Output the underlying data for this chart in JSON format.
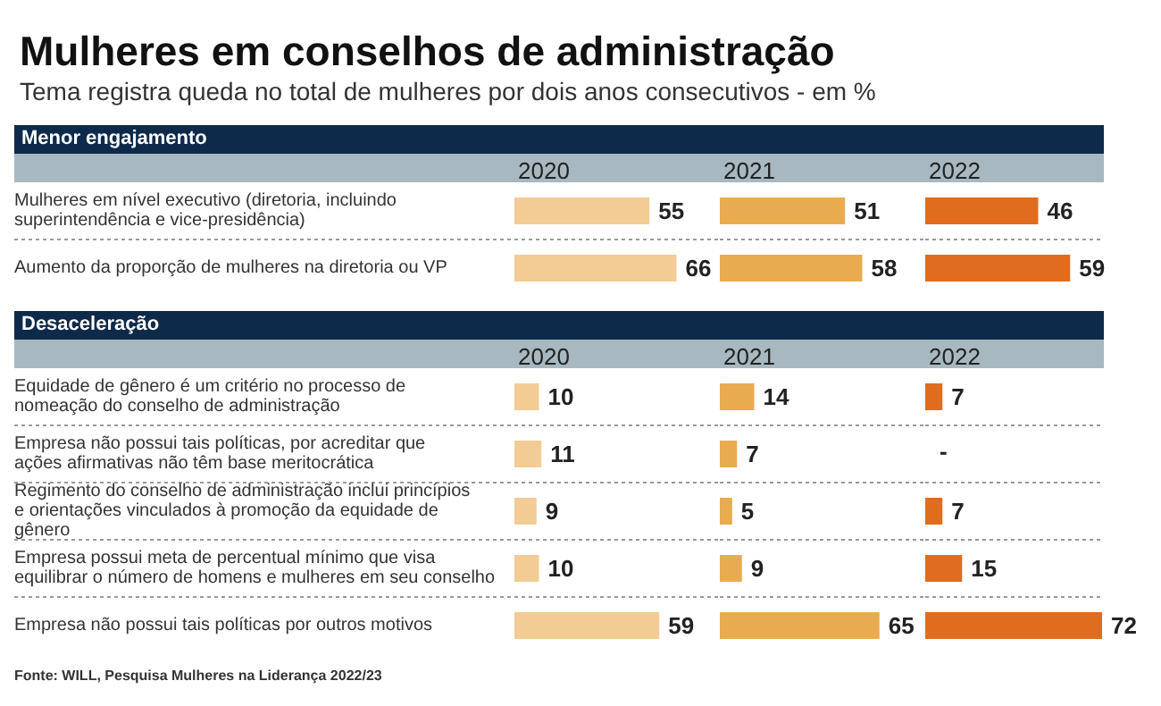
{
  "chart_data": [
    {
      "type": "bar",
      "orientation": "horizontal",
      "title": "Mulheres em conselhos de administração",
      "subtitle": "Tema registra queda no total de mulheres por dois anos consecutivos - em %",
      "annotations": [
        "Menor engajamento"
      ],
      "categories": [
        "Mulheres em nível executivo (diretoria, incluindo superintendência e vice-presidência)",
        "Aumento da proporção de mulheres na diretoria ou VP"
      ],
      "series": [
        {
          "name": "2020",
          "color": "#f2cc94",
          "values": [
            55,
            66
          ]
        }
      ],
      "data_labels": true,
      "grid": "y",
      "tick_labels": "y"
    },
    {
      "type": "bar",
      "orientation": "horizontal",
      "categories": [
        "Mulheres em nível executivo (diretoria, incluindo superintendência e vice-presidência)",
        "Aumento da proporção de mulheres na diretoria ou VP"
      ],
      "series": [
        {
          "name": "2021",
          "color": "#e9ab4f",
          "values": [
            51,
            58
          ]
        }
      ],
      "data_labels": true,
      "grid": "y",
      "tick_labels": false
    },
    {
      "type": "bar",
      "orientation": "horizontal",
      "categories": [
        "Mulheres em nível executivo (diretoria, incluindo superintendência e vice-presidência)",
        "Aumento da proporção de mulheres na diretoria ou VP"
      ],
      "series": [
        {
          "name": "2022",
          "color": "#e06c1f",
          "values": [
            46,
            59
          ]
        }
      ],
      "data_labels": true,
      "grid": "y",
      "tick_labels": false
    },
    {
      "type": "bar",
      "orientation": "horizontal",
      "annotations": [
        "Desaceleração",
        "Fonte: WILL, Pesquisa Mulheres na Liderança 2022/23"
      ],
      "categories": [
        "Equidade de gênero é um critério no processo de nomeação do conselho de administração",
        "Empresa não possui tais políticas, por acreditar que ações afirmativas não têm base meritocrática",
        "Regimento do conselho de administração inclui princípios e orientações vinculados à promoção da equidade de gênero",
        "Empresa possui meta de percentual mínimo que visa equilibrar o número de homens e mulheres em seu conselho",
        "Empresa não possui tais políticas por outros motivos"
      ],
      "series": [
        {
          "name": "2020",
          "color": "#f2cc94",
          "values": [
            10,
            11,
            9,
            10,
            59
          ]
        }
      ],
      "data_labels": true,
      "grid": "y",
      "tick_labels": "y"
    },
    {
      "type": "bar",
      "orientation": "horizontal",
      "categories": [
        "Equidade de gênero é um critério no processo de nomeação do conselho de administração",
        "Empresa não possui tais políticas, por acreditar que ações afirmativas não têm base meritocrática",
        "Regimento do conselho de administração inclui princípios e orientações vinculados à promoção da equidade de gênero",
        "Empresa possui meta de percentual mínimo que visa equilibrar o número de homens e mulheres em seu conselho",
        "Empresa não possui tais políticas por outros motivos"
      ],
      "series": [
        {
          "name": "2021",
          "color": "#e9ab4f",
          "values": [
            14,
            7,
            5,
            9,
            65
          ]
        }
      ],
      "data_labels": true,
      "grid": "y",
      "tick_labels": false
    },
    {
      "type": "bar",
      "orientation": "horizontal",
      "categories": [
        "Equidade de gênero é um critério no processo de nomeação do conselho de administração",
        "Empresa não possui tais políticas, por acreditar que ações afirmativas não têm base meritocrática",
        "Regimento do conselho de administração inclui princípios e orientações vinculados à promoção da equidade de gênero",
        "Empresa possui meta de percentual mínimo que visa equilibrar o número de homens e mulheres em seu conselho",
        "Empresa não possui tais políticas por outros motivos"
      ],
      "series": [
        {
          "name": "2022",
          "color": "#e06c1f",
          "values": [
            7,
            null,
            7,
            15,
            72
          ],
          "value_labels": [
            "7",
            "-",
            "7",
            "15",
            "72"
          ]
        }
      ],
      "data_labels": true,
      "grid": "y",
      "tick_labels": false
    }
  ]
}
